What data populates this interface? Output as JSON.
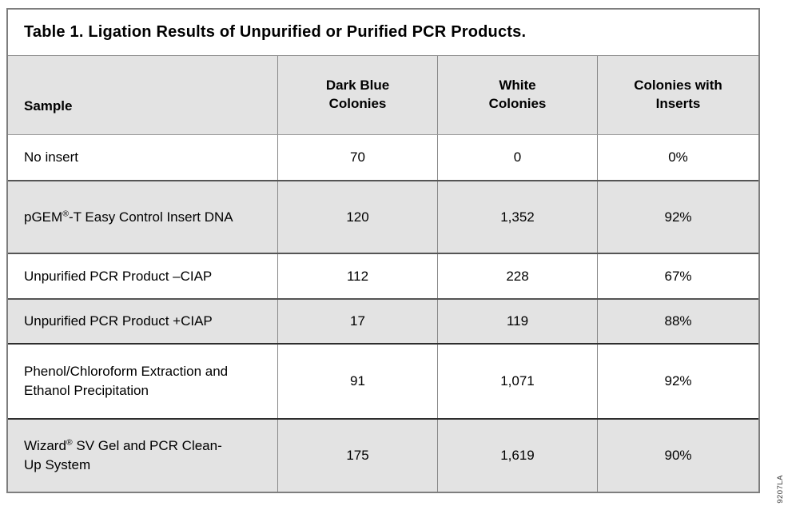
{
  "title": "Table 1. Ligation Results of Unpurified or Purified PCR Products.",
  "figure_number": "9207LA",
  "colors": {
    "row_shade": "#e3e3e3",
    "outer_border": "#7e7e7e",
    "light_separator": "#979797",
    "dark_separator": "#555555",
    "text": "#000000"
  },
  "header": {
    "sample": "Sample",
    "col1_line1": "Dark Blue",
    "col1_line2": "Colonies",
    "col2_line1": "White",
    "col2_line2": "Colonies",
    "col3_line1": "Colonies with",
    "col3_line2": "Inserts"
  },
  "chart_data": {
    "type": "table",
    "title": "Table 1. Ligation Results of Unpurified or Purified PCR Products.",
    "columns": [
      "Sample",
      "Dark Blue Colonies",
      "White Colonies",
      "Colonies with Inserts"
    ],
    "rows": [
      [
        "No insert",
        "70",
        "0",
        "0%"
      ],
      [
        "pGEM®-T Easy Control Insert DNA",
        "120",
        "1,352",
        "92%"
      ],
      [
        "Unpurified PCR Product –CIAP",
        "112",
        "228",
        "67%"
      ],
      [
        "Unpurified PCR Product +CIAP",
        "17",
        "119",
        "88%"
      ],
      [
        "Phenol/Chloroform Extraction and Ethanol Precipitation",
        "91",
        "1,071",
        "92%"
      ],
      [
        "Wizard® SV Gel and PCR Clean-Up System",
        "175",
        "1,619",
        "90%"
      ]
    ]
  }
}
